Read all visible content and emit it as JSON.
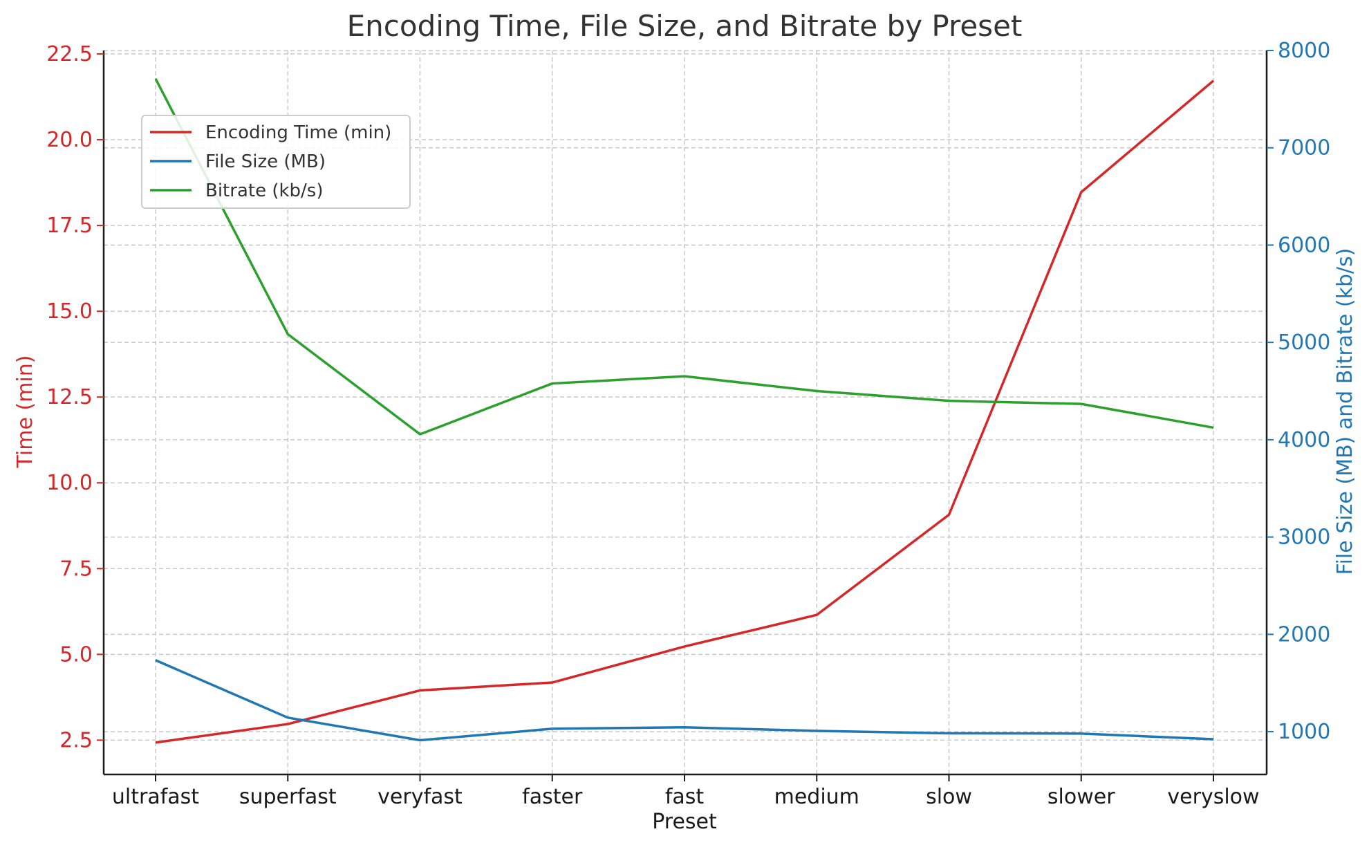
{
  "chart_data": {
    "type": "line",
    "title": "Encoding Time, File Size, and Bitrate by Preset",
    "xlabel": "Preset",
    "ylabel_left": "Time (min)",
    "ylabel_right": "File Size (MB) and Bitrate (kb/s)",
    "categories": [
      "ultrafast",
      "superfast",
      "veryfast",
      "faster",
      "fast",
      "medium",
      "slow",
      "slower",
      "veryslow"
    ],
    "y_left": {
      "lim": [
        1.5,
        22.6
      ],
      "ticks": [
        2.5,
        5.0,
        7.5,
        10.0,
        12.5,
        15.0,
        17.5,
        20.0,
        22.5
      ],
      "tick_labels": [
        "2.5",
        "5.0",
        "7.5",
        "10.0",
        "12.5",
        "15.0",
        "17.5",
        "20.0",
        "22.5"
      ],
      "color": "#d62728"
    },
    "y_right": {
      "lim": [
        560,
        8000
      ],
      "ticks": [
        1000,
        2000,
        3000,
        4000,
        5000,
        6000,
        7000,
        8000
      ],
      "tick_labels": [
        "1000",
        "2000",
        "3000",
        "4000",
        "5000",
        "6000",
        "7000",
        "8000"
      ],
      "color": "#1f77b4"
    },
    "series": [
      {
        "name": "Encoding Time (min)",
        "axis": "left",
        "color": "#d62728",
        "values": [
          2.43,
          2.97,
          3.95,
          4.18,
          5.23,
          6.15,
          9.07,
          18.47,
          21.72
        ]
      },
      {
        "name": "File Size (MB)",
        "axis": "right",
        "color": "#1f77b4",
        "values": [
          1734,
          1144,
          912,
          1030,
          1045,
          1008,
          983,
          980,
          922
        ]
      },
      {
        "name": "Bitrate (kb/s)",
        "axis": "right",
        "color": "#2ca02c",
        "values": [
          7710,
          5085,
          4056,
          4578,
          4652,
          4500,
          4400,
          4368,
          4124
        ]
      }
    ],
    "grid": true,
    "legend_position": "upper-left"
  }
}
